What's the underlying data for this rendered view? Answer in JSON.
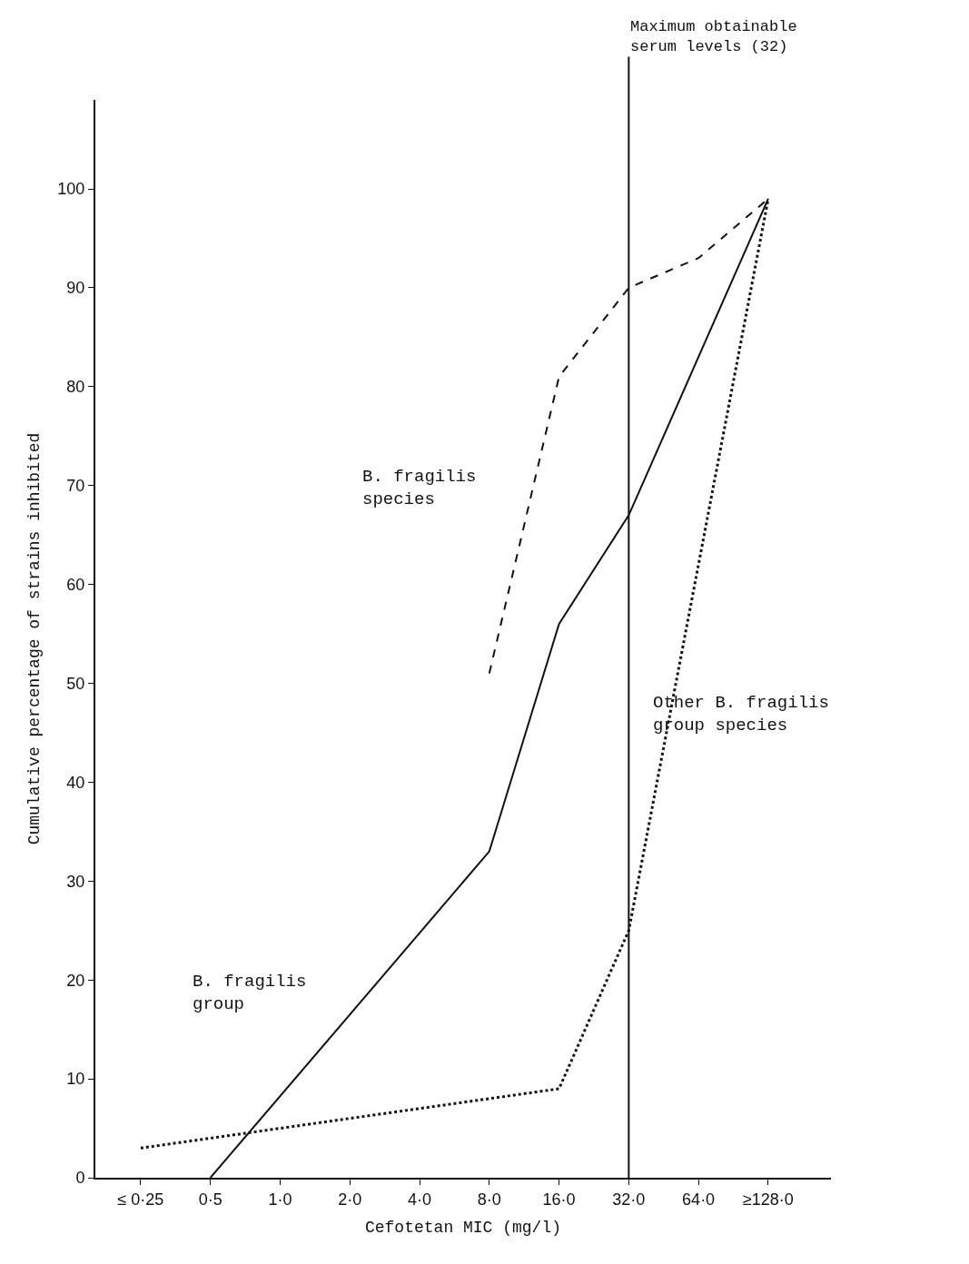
{
  "chart_data": {
    "type": "line",
    "xlabel": "Cefotetan MIC (mg/l)",
    "ylabel": "Cumulative percentage of strains inhibited",
    "categories": [
      "≤ 0·25",
      "0·5",
      "1·0",
      "2·0",
      "4·0",
      "8·0",
      "16·0",
      "32·0",
      "64·0",
      "≥128·0"
    ],
    "ylim": [
      0,
      109
    ],
    "yticks": [
      0,
      10,
      20,
      30,
      40,
      50,
      60,
      70,
      80,
      90,
      100
    ],
    "marker": "none",
    "series": [
      {
        "color": "#111111",
        "line_style": "solid",
        "x": [
          "0·5",
          "8·0",
          "16·0",
          "32·0",
          "≥128·0"
        ],
        "values": [
          0,
          33,
          56,
          67,
          99
        ]
      },
      {
        "color": "#111111",
        "line_style": "dashed",
        "x": [
          "8·0",
          "16·0",
          "32·0",
          "64·0",
          "≥128·0"
        ],
        "values": [
          51,
          81,
          90,
          93,
          99
        ]
      },
      {
        "color": "#111111",
        "line_style": "dotted",
        "x": [
          "≤ 0·25",
          "16·0",
          "32·0",
          "≥128·0"
        ],
        "values": [
          3,
          9,
          25,
          99
        ]
      }
    ],
    "ref_lines": [
      {
        "axis": "x",
        "value": "32·0",
        "label": "Maximum obtainable\nserum levels (32)",
        "color": "#111111",
        "line_style": "solid"
      }
    ],
    "annotations": [
      "B. fragilis\nspecies",
      "B. fragilis\ngroup",
      "Other B. fragilis\ngroup species"
    ]
  }
}
